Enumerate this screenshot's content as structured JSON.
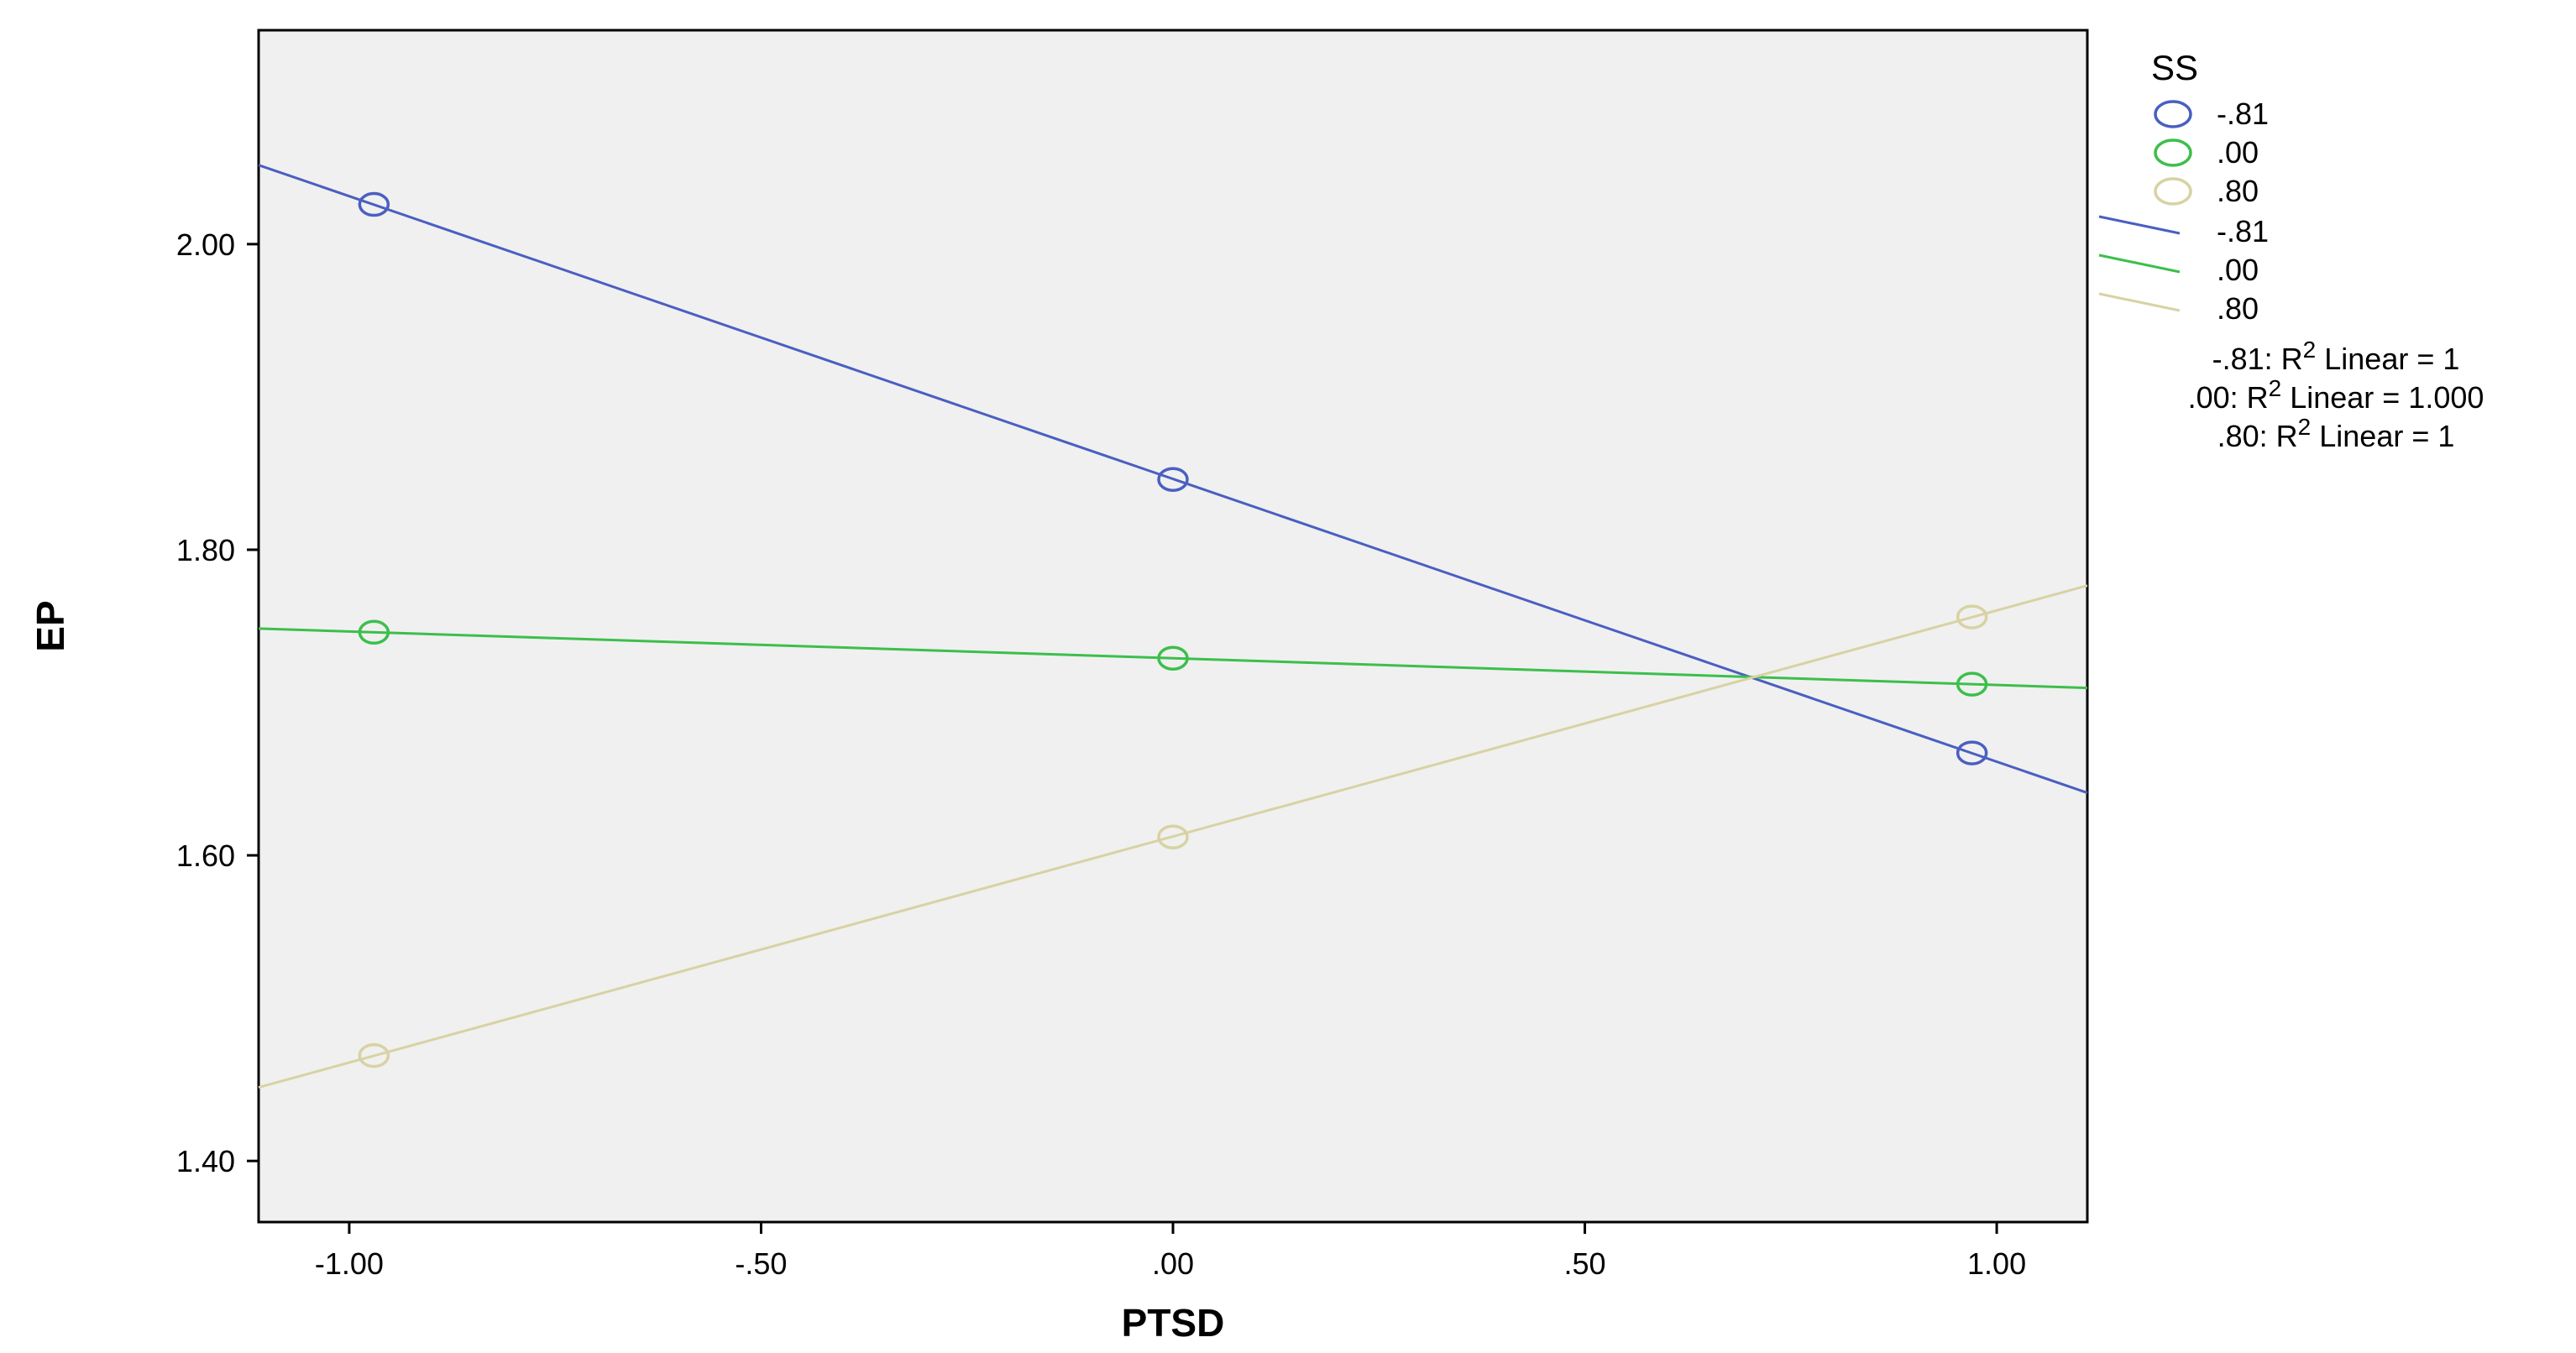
{
  "chart_data": {
    "type": "scatter",
    "xlabel": "PTSD",
    "ylabel": "EP",
    "xlim": [
      -1.11,
      1.11
    ],
    "ylim": [
      1.36,
      2.14
    ],
    "x_ticks": [
      -1.0,
      -0.5,
      0.0,
      0.5,
      1.0
    ],
    "x_tick_labels": [
      "-1.00",
      "-.50",
      ".00",
      ".50",
      "1.00"
    ],
    "y_ticks": [
      1.4,
      1.6,
      1.8,
      2.0
    ],
    "y_tick_labels": [
      "1.40",
      "1.60",
      "1.80",
      "2.00"
    ],
    "grid": false,
    "legend_position": "right",
    "legend_title": "SS",
    "series": [
      {
        "name": "-.81",
        "color": "#4a5fc1",
        "points": [
          [
            -0.97,
            2.026
          ],
          [
            0.0,
            1.846
          ],
          [
            0.97,
            1.667
          ]
        ],
        "fit_label": "-.81: R² Linear = 1"
      },
      {
        "name": ".00",
        "color": "#3cbf4b",
        "points": [
          [
            -0.97,
            1.746
          ],
          [
            0.0,
            1.729
          ],
          [
            0.97,
            1.712
          ]
        ],
        "fit_label": ".00: R² Linear = 1.000"
      },
      {
        "name": ".80",
        "color": "#d8d2a4",
        "points": [
          [
            -0.97,
            1.469
          ],
          [
            0.0,
            1.612
          ],
          [
            0.97,
            1.756
          ]
        ],
        "fit_label": ".80: R² Linear = 1"
      }
    ]
  }
}
